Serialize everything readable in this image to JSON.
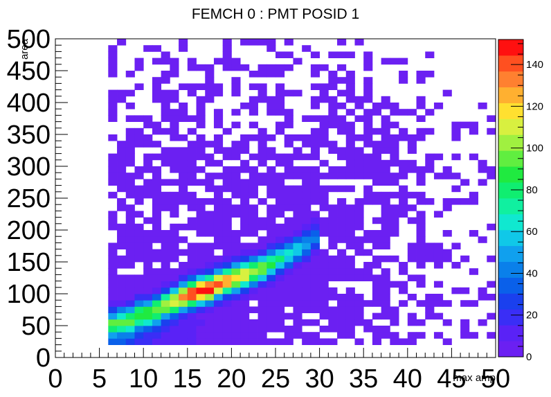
{
  "chart_data": {
    "type": "heatmap",
    "title": "FEMCH 0 : PMT POSID 1",
    "xlabel": "max amp",
    "ylabel": "area",
    "xlim": [
      0,
      50
    ],
    "ylim": [
      0,
      500
    ],
    "bins": {
      "nx": 50,
      "ny": 50
    },
    "x_ticks": [
      "0",
      "5",
      "10",
      "15",
      "20",
      "25",
      "30",
      "35",
      "40",
      "45",
      "50"
    ],
    "y_ticks": [
      "0",
      "50",
      "100",
      "150",
      "200",
      "250",
      "300",
      "350",
      "400",
      "450",
      "500"
    ],
    "palette_ticks": [
      "0",
      "20",
      "40",
      "60",
      "80",
      "100",
      "120",
      "140"
    ],
    "z_range": [
      0,
      152
    ],
    "palette": [
      "#6b20f2",
      "#5a22f6",
      "#3a2ef6",
      "#1a40ee",
      "#0a60ea",
      "#0a80ea",
      "#10a0ee",
      "#10c8e8",
      "#10e8d0",
      "#10f0a0",
      "#10ee70",
      "#20ea40",
      "#60ee40",
      "#a0f040",
      "#d8f040",
      "#ffe030",
      "#ffb030",
      "#ff8030",
      "#ff5020",
      "#ff1010"
    ],
    "ridge": [
      {
        "x": 6.5,
        "y": 55,
        "z": 60
      },
      {
        "x": 7.5,
        "y": 58,
        "z": 70
      },
      {
        "x": 8.5,
        "y": 60,
        "z": 78
      },
      {
        "x": 9.5,
        "y": 68,
        "z": 82
      },
      {
        "x": 10.5,
        "y": 70,
        "z": 85
      },
      {
        "x": 11.5,
        "y": 75,
        "z": 92
      },
      {
        "x": 12.5,
        "y": 82,
        "z": 98
      },
      {
        "x": 13.5,
        "y": 88,
        "z": 110
      },
      {
        "x": 14.5,
        "y": 95,
        "z": 125
      },
      {
        "x": 15.5,
        "y": 100,
        "z": 140
      },
      {
        "x": 16.5,
        "y": 105,
        "z": 150
      },
      {
        "x": 17.5,
        "y": 108,
        "z": 145
      },
      {
        "x": 18.5,
        "y": 115,
        "z": 135
      },
      {
        "x": 19.5,
        "y": 120,
        "z": 125
      },
      {
        "x": 20.5,
        "y": 125,
        "z": 115
      },
      {
        "x": 21.5,
        "y": 130,
        "z": 108
      },
      {
        "x": 22.5,
        "y": 135,
        "z": 100
      },
      {
        "x": 23.5,
        "y": 140,
        "z": 92
      },
      {
        "x": 24.5,
        "y": 148,
        "z": 80
      },
      {
        "x": 25.5,
        "y": 155,
        "z": 70
      },
      {
        "x": 26.5,
        "y": 162,
        "z": 62
      },
      {
        "x": 27.5,
        "y": 170,
        "z": 55
      },
      {
        "x": 28.5,
        "y": 178,
        "z": 45
      },
      {
        "x": 29.5,
        "y": 188,
        "z": 35
      }
    ]
  }
}
